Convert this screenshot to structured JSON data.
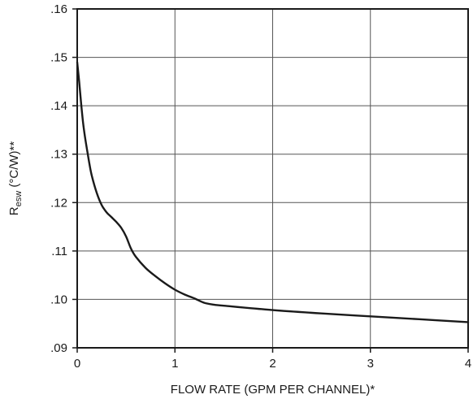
{
  "chart_data": {
    "type": "line",
    "title": "",
    "xlabel": "FLOW RATE (GPM PER CHANNEL)*",
    "ylabel": {
      "main": "R",
      "subscript": "esw",
      "rest": " (°C/W)**"
    },
    "xlim": [
      0,
      4
    ],
    "ylim": [
      0.09,
      0.16
    ],
    "x_ticks": [
      {
        "value": 0,
        "label": "0"
      },
      {
        "value": 1,
        "label": "1"
      },
      {
        "value": 2,
        "label": "2"
      },
      {
        "value": 3,
        "label": "3"
      },
      {
        "value": 4,
        "label": "4"
      }
    ],
    "y_ticks": [
      {
        "value": 0.09,
        "label": ".09"
      },
      {
        "value": 0.1,
        "label": ".10"
      },
      {
        "value": 0.11,
        "label": ".11"
      },
      {
        "value": 0.12,
        "label": ".12"
      },
      {
        "value": 0.13,
        "label": ".13"
      },
      {
        "value": 0.14,
        "label": ".14"
      },
      {
        "value": 0.15,
        "label": ".15"
      },
      {
        "value": 0.16,
        "label": ".16"
      }
    ],
    "grid": true,
    "series": [
      {
        "color": "#1a1a1a",
        "points": [
          [
            0.0,
            0.149
          ],
          [
            0.02,
            0.145
          ],
          [
            0.04,
            0.1405
          ],
          [
            0.06,
            0.1365
          ],
          [
            0.08,
            0.1335
          ],
          [
            0.1,
            0.131
          ],
          [
            0.125,
            0.128
          ],
          [
            0.15,
            0.1255
          ],
          [
            0.2,
            0.122
          ],
          [
            0.25,
            0.1195
          ],
          [
            0.3,
            0.118
          ],
          [
            0.35,
            0.117
          ],
          [
            0.4,
            0.116
          ],
          [
            0.45,
            0.1148
          ],
          [
            0.5,
            0.113
          ],
          [
            0.55,
            0.1105
          ],
          [
            0.6,
            0.1088
          ],
          [
            0.7,
            0.1065
          ],
          [
            0.8,
            0.1048
          ],
          [
            0.9,
            0.1033
          ],
          [
            1.0,
            0.102
          ],
          [
            1.1,
            0.101
          ],
          [
            1.2,
            0.1002
          ],
          [
            1.3,
            0.0993
          ],
          [
            1.4,
            0.0989
          ],
          [
            1.5,
            0.0987
          ],
          [
            2.0,
            0.0978
          ],
          [
            2.5,
            0.0971
          ],
          [
            3.0,
            0.0965
          ],
          [
            3.5,
            0.0959
          ],
          [
            4.0,
            0.0953
          ]
        ]
      }
    ]
  }
}
